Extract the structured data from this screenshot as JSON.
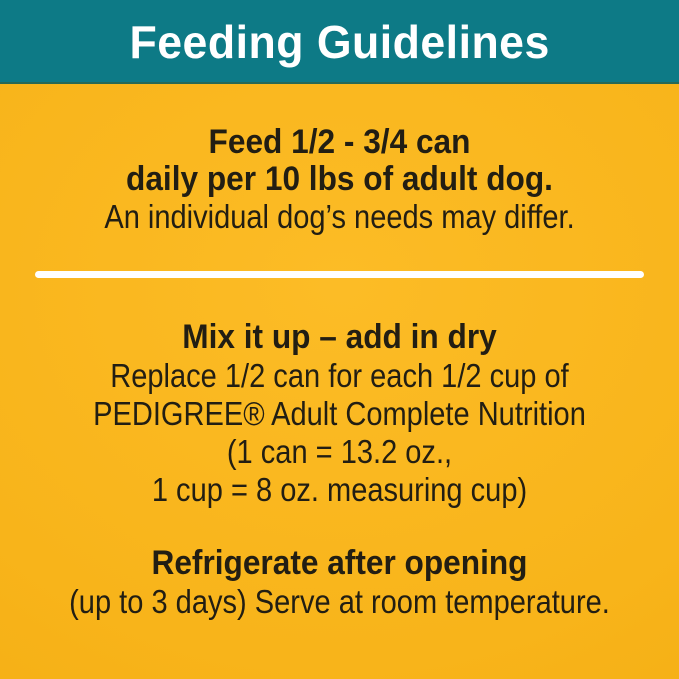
{
  "colors": {
    "banner_teal": "#0d7a86",
    "body_yellow": "#f8b41a",
    "title_white": "#ffffff",
    "text_dark": "#221e13"
  },
  "header": {
    "title": "Feeding Guidelines"
  },
  "feeding": {
    "line1": "Feed 1/2 - 3/4 can",
    "line2": "daily per 10 lbs of adult dog.",
    "note": "An individual dog’s needs may differ."
  },
  "mix": {
    "heading": "Mix it up – add in dry",
    "lines": [
      "Replace 1/2 can for each 1/2 cup of",
      "PEDIGREE® Adult Complete Nutrition",
      "(1 can = 13.2 oz.,",
      "1 cup = 8 oz. measuring cup)"
    ]
  },
  "storage": {
    "heading": "Refrigerate after opening",
    "note": "(up to 3 days) Serve at room temperature."
  }
}
